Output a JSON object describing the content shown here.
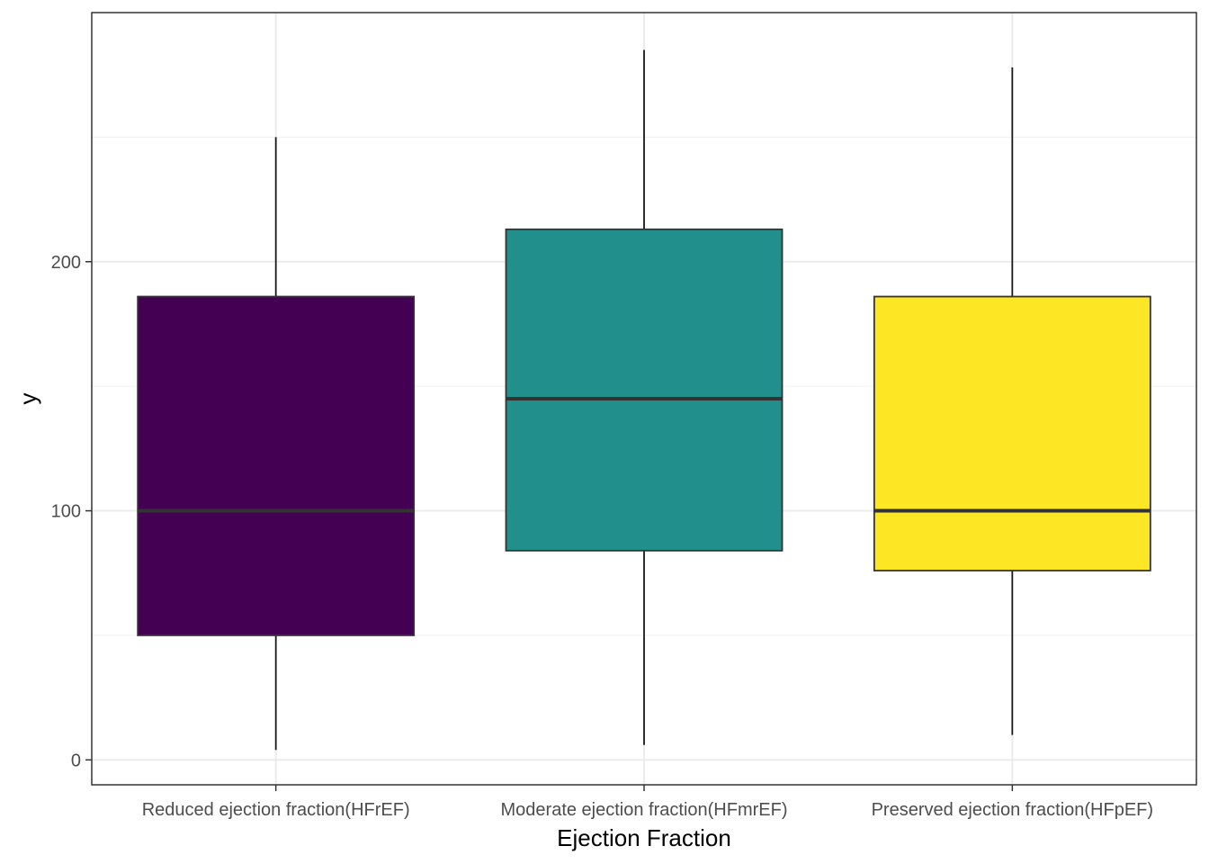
{
  "chart_data": {
    "type": "box",
    "title": "",
    "xlabel": "Ejection Fraction",
    "ylabel": "y",
    "categories": [
      "Reduced ejection fraction(HFrEF)",
      "Moderate ejection fraction(HFmrEF)",
      "Preserved ejection fraction(HFpEF)"
    ],
    "boxes": [
      {
        "category": "Reduced ejection fraction(HFrEF)",
        "whisker_low": 4,
        "q1": 50,
        "median": 100,
        "q3": 186,
        "whisker_high": 250,
        "fill": "#440154"
      },
      {
        "category": "Moderate ejection fraction(HFmrEF)",
        "whisker_low": 6,
        "q1": 84,
        "median": 145,
        "q3": 213,
        "whisker_high": 285,
        "fill": "#21908C"
      },
      {
        "category": "Preserved ejection fraction(HFpEF)",
        "whisker_low": 10,
        "q1": 76,
        "median": 100,
        "q3": 186,
        "whisker_high": 278,
        "fill": "#FDE725"
      }
    ],
    "y_ticks": [
      0,
      100,
      200
    ],
    "ylim": [
      -10,
      300
    ],
    "grid": true,
    "legend": "none"
  }
}
